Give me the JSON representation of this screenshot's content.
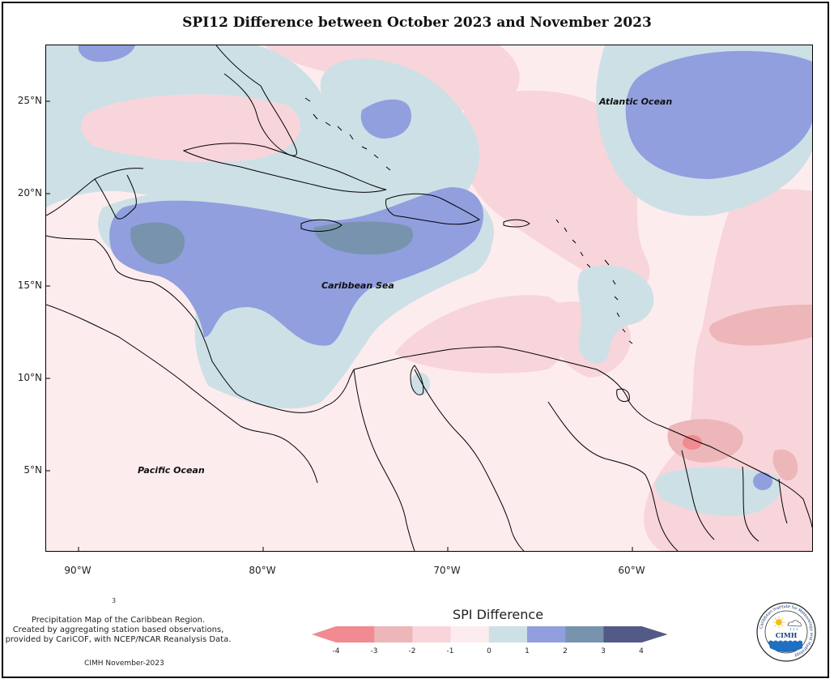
{
  "title": "SPI12 Difference between October 2023 and November 2023",
  "map": {
    "lat_labels": [
      "25°N",
      "20°N",
      "15°N",
      "10°N",
      "5°N"
    ],
    "lon_labels": [
      "90°W",
      "80°W",
      "70°W",
      "60°W"
    ],
    "ocean_labels": {
      "atlantic": "Atlantic Ocean",
      "caribbean": "Caribbean Sea",
      "pacific": "Pacific Ocean"
    }
  },
  "legend": {
    "title": "SPI Difference",
    "ticks": [
      "-4",
      "-3",
      "-2",
      "-1",
      "0",
      "1",
      "2",
      "3",
      "4"
    ],
    "colors": [
      "#f28a92",
      "#edb6b9",
      "#f8d5da",
      "#fdecee",
      "#cde0e6",
      "#919fdf",
      "#7893ad",
      "#545a86"
    ]
  },
  "description": {
    "lines": [
      "Precipitation Map of the Caribbean Region.",
      "Created by aggregating station based observations,",
      "provided by CariCOF, with NCEP/NCAR Reanalysis Data."
    ],
    "credit": "CIMH November-2023",
    "mark": "3"
  },
  "logo": {
    "text": "CIMH",
    "ring_text": "Caribbean Institute for Meteorology and Hydrology"
  }
}
